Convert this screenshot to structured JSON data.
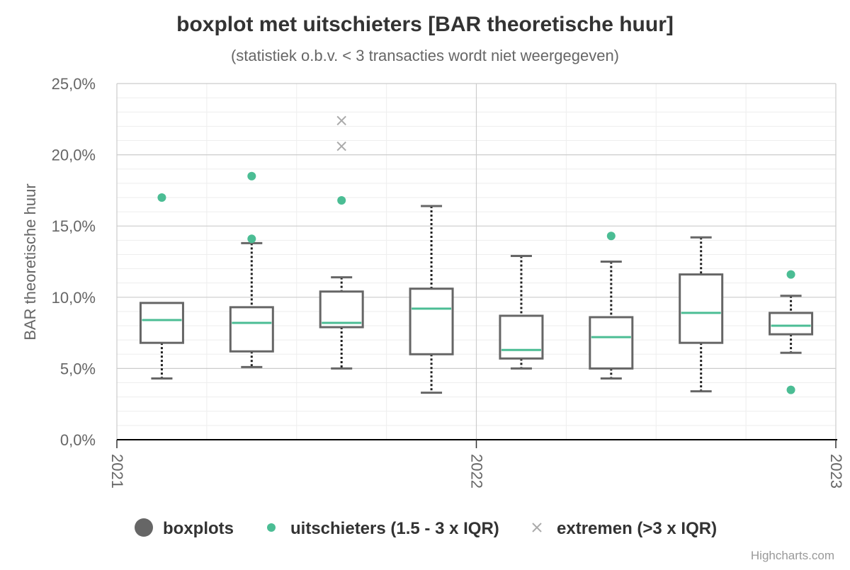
{
  "chart_data": {
    "type": "boxplot",
    "title": "boxplot met uitschieters [BAR theoretische huur]",
    "subtitle": "(statistiek o.b.v. < 3 transacties wordt niet weergegeven)",
    "ylabel": "BAR theoretische huur",
    "xlabel": "",
    "x_range": [
      2021,
      2023
    ],
    "ylim": [
      0,
      25
    ],
    "y_ticks": [
      "0,0%",
      "5,0%",
      "10,0%",
      "15,0%",
      "20,0%",
      "25,0%"
    ],
    "x_ticks": [
      "2021",
      "2022",
      "2023"
    ],
    "grid": true,
    "legend_position": "bottom",
    "credit": "Highcharts.com",
    "legend": [
      {
        "label": "boxplots",
        "symbol": "circle-large",
        "color": "#666666"
      },
      {
        "label": "uitschieters (1.5 - 3 x IQR)",
        "symbol": "circle",
        "color": "#4bbd94"
      },
      {
        "label": "extremen (>3 x IQR)",
        "symbol": "cross",
        "color": "#aaaaaa"
      }
    ],
    "colors": {
      "box": "#666666",
      "median": "#4bbd94",
      "outlier": "#4bbd94",
      "extreme": "#aaaaaa",
      "axis": "#000000"
    },
    "boxes": [
      {
        "x": 2021.125,
        "low": 4.3,
        "q1": 6.8,
        "median": 8.4,
        "q3": 9.6,
        "high": 9.6
      },
      {
        "x": 2021.375,
        "low": 5.1,
        "q1": 6.2,
        "median": 8.2,
        "q3": 9.3,
        "high": 13.8
      },
      {
        "x": 2021.625,
        "low": 5.0,
        "q1": 7.9,
        "median": 8.2,
        "q3": 10.4,
        "high": 11.4
      },
      {
        "x": 2021.875,
        "low": 3.3,
        "q1": 6.0,
        "median": 9.2,
        "q3": 10.6,
        "high": 16.4
      },
      {
        "x": 2022.125,
        "low": 5.0,
        "q1": 5.7,
        "median": 6.3,
        "q3": 8.7,
        "high": 12.9
      },
      {
        "x": 2022.375,
        "low": 4.3,
        "q1": 5.0,
        "median": 7.2,
        "q3": 8.6,
        "high": 12.5
      },
      {
        "x": 2022.625,
        "low": 3.4,
        "q1": 6.8,
        "median": 8.9,
        "q3": 11.6,
        "high": 14.2
      },
      {
        "x": 2022.875,
        "low": 6.1,
        "q1": 7.4,
        "median": 8.0,
        "q3": 8.9,
        "high": 10.1
      }
    ],
    "outliers": [
      {
        "x": 2021.125,
        "y": 17.0
      },
      {
        "x": 2021.375,
        "y": 18.5
      },
      {
        "x": 2021.375,
        "y": 14.1
      },
      {
        "x": 2021.625,
        "y": 16.8
      },
      {
        "x": 2022.375,
        "y": 14.3
      },
      {
        "x": 2022.875,
        "y": 11.6
      },
      {
        "x": 2022.875,
        "y": 3.5
      }
    ],
    "extremes": [
      {
        "x": 2021.625,
        "y": 22.4
      },
      {
        "x": 2021.625,
        "y": 20.6
      }
    ]
  }
}
